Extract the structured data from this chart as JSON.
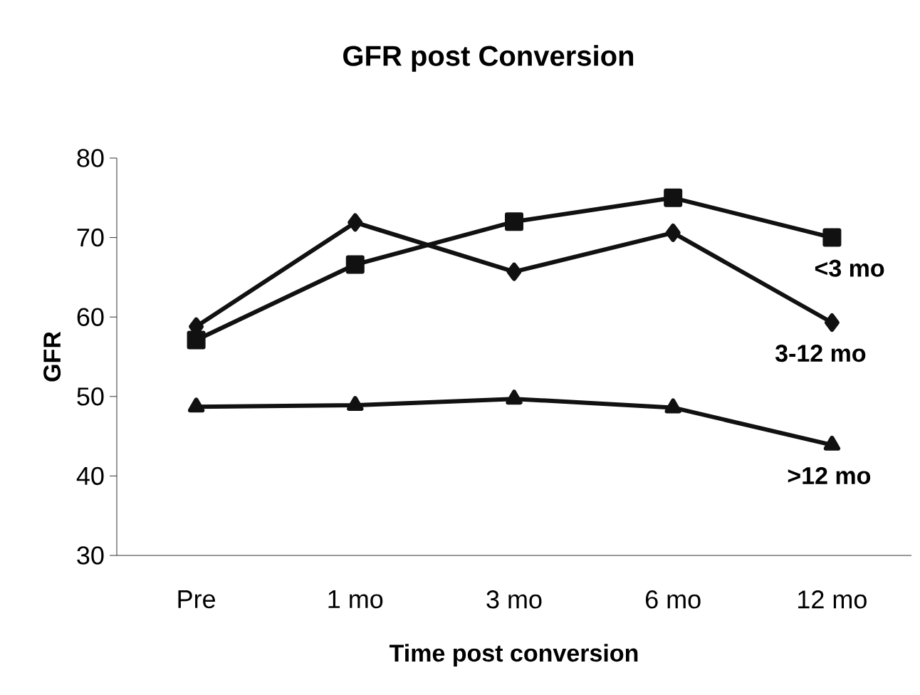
{
  "chart_data": {
    "type": "line",
    "title": "GFR post Conversion",
    "xlabel": "Time post conversion",
    "ylabel": "GFR",
    "categories": [
      "Pre",
      "1 mo",
      "3 mo",
      "6 mo",
      "12 mo"
    ],
    "ylim": [
      30,
      80
    ],
    "yticks": [
      30,
      40,
      50,
      60,
      70,
      80
    ],
    "grid": false,
    "legend": false,
    "line_style": "solid",
    "series": [
      {
        "name": "<3 mo",
        "color": "#111111",
        "marker": "square",
        "values": [
          57.1,
          66.6,
          72.0,
          75.0,
          70.0
        ]
      },
      {
        "name": "3-12 mo",
        "color": "#111111",
        "marker": "diamond",
        "values": [
          58.8,
          71.9,
          65.7,
          70.6,
          59.3
        ]
      },
      {
        "name": ">12 mo",
        "color": "#111111",
        "marker": "triangle",
        "values": [
          48.7,
          48.9,
          49.7,
          48.6,
          43.9
        ]
      }
    ]
  }
}
